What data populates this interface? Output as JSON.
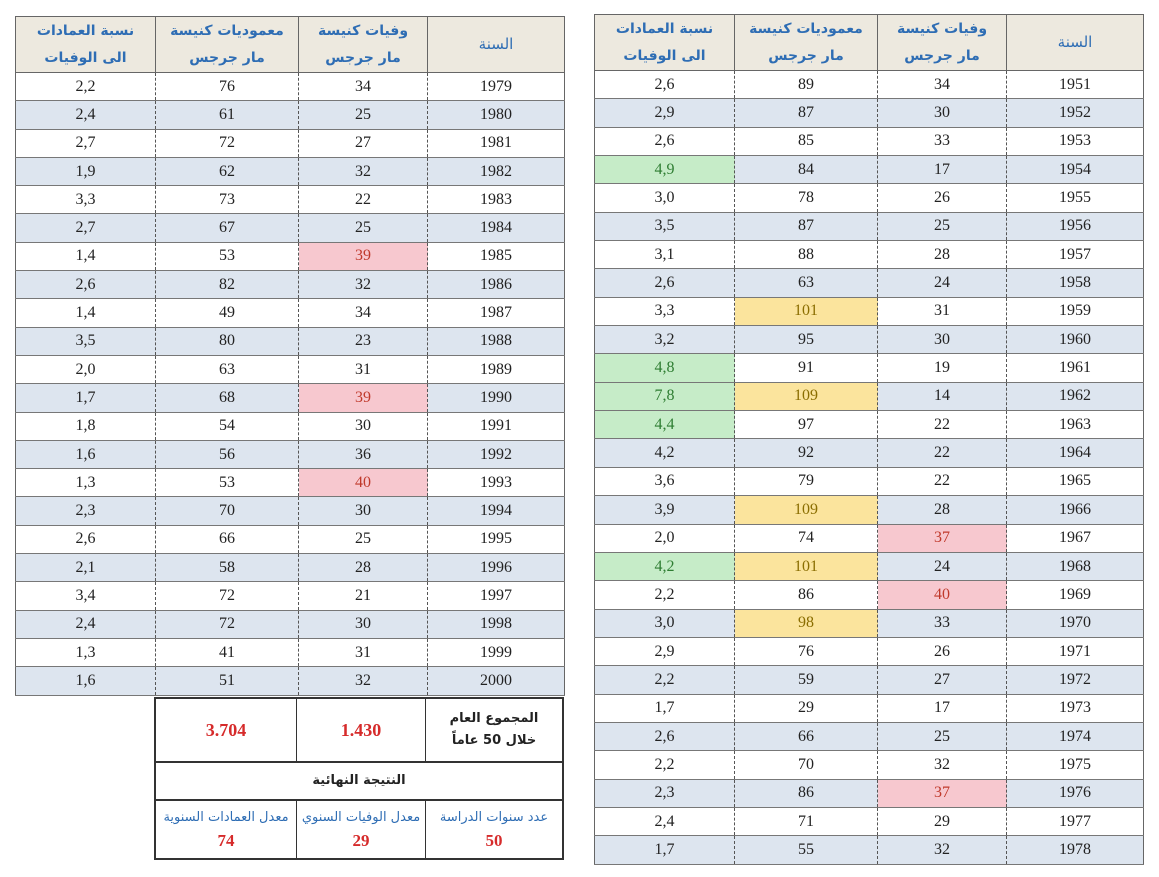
{
  "headers": {
    "year": "السنة",
    "deaths_line1": "وفيات كنيسة",
    "deaths_line2": "مار جرجس",
    "baptisms_line1": "معموديات كنيسة",
    "baptisms_line2": "مار جرجس",
    "ratio_line1": "نسبة العمادات",
    "ratio_line2": "الى الوفيات"
  },
  "colors": {
    "red": "#f7c8cf",
    "yellow": "#fbe49d",
    "green": "#c6ecc8",
    "stripe": "#dde5ef",
    "header_bg": "#ede9df",
    "header_text": "#2e6db4"
  },
  "right_table": [
    {
      "year": "1951",
      "deaths": "34",
      "baptisms": "89",
      "ratio": "2,6"
    },
    {
      "year": "1952",
      "deaths": "30",
      "baptisms": "87",
      "ratio": "2,9"
    },
    {
      "year": "1953",
      "deaths": "33",
      "baptisms": "85",
      "ratio": "2,6"
    },
    {
      "year": "1954",
      "deaths": "17",
      "baptisms": "84",
      "ratio": "4,9",
      "ratio_hl": "green"
    },
    {
      "year": "1955",
      "deaths": "26",
      "baptisms": "78",
      "ratio": "3,0"
    },
    {
      "year": "1956",
      "deaths": "25",
      "baptisms": "87",
      "ratio": "3,5"
    },
    {
      "year": "1957",
      "deaths": "28",
      "baptisms": "88",
      "ratio": "3,1"
    },
    {
      "year": "1958",
      "deaths": "24",
      "baptisms": "63",
      "ratio": "2,6"
    },
    {
      "year": "1959",
      "deaths": "31",
      "baptisms": "101",
      "ratio": "3,3",
      "baptisms_hl": "yellow"
    },
    {
      "year": "1960",
      "deaths": "30",
      "baptisms": "95",
      "ratio": "3,2"
    },
    {
      "year": "1961",
      "deaths": "19",
      "baptisms": "91",
      "ratio": "4,8",
      "ratio_hl": "green"
    },
    {
      "year": "1962",
      "deaths": "14",
      "baptisms": "109",
      "ratio": "7,8",
      "baptisms_hl": "yellow",
      "ratio_hl": "green"
    },
    {
      "year": "1963",
      "deaths": "22",
      "baptisms": "97",
      "ratio": "4,4",
      "ratio_hl": "green"
    },
    {
      "year": "1964",
      "deaths": "22",
      "baptisms": "92",
      "ratio": "4,2"
    },
    {
      "year": "1965",
      "deaths": "22",
      "baptisms": "79",
      "ratio": "3,6"
    },
    {
      "year": "1966",
      "deaths": "28",
      "baptisms": "109",
      "ratio": "3,9",
      "baptisms_hl": "yellow"
    },
    {
      "year": "1967",
      "deaths": "37",
      "baptisms": "74",
      "ratio": "2,0",
      "deaths_hl": "red"
    },
    {
      "year": "1968",
      "deaths": "24",
      "baptisms": "101",
      "ratio": "4,2",
      "baptisms_hl": "yellow",
      "ratio_hl": "green"
    },
    {
      "year": "1969",
      "deaths": "40",
      "baptisms": "86",
      "ratio": "2,2",
      "deaths_hl": "red"
    },
    {
      "year": "1970",
      "deaths": "33",
      "baptisms": "98",
      "ratio": "3,0",
      "baptisms_hl": "yellow"
    },
    {
      "year": "1971",
      "deaths": "26",
      "baptisms": "76",
      "ratio": "2,9"
    },
    {
      "year": "1972",
      "deaths": "27",
      "baptisms": "59",
      "ratio": "2,2"
    },
    {
      "year": "1973",
      "deaths": "17",
      "baptisms": "29",
      "ratio": "1,7"
    },
    {
      "year": "1974",
      "deaths": "25",
      "baptisms": "66",
      "ratio": "2,6"
    },
    {
      "year": "1975",
      "deaths": "32",
      "baptisms": "70",
      "ratio": "2,2"
    },
    {
      "year": "1976",
      "deaths": "37",
      "baptisms": "86",
      "ratio": "2,3",
      "deaths_hl": "red"
    },
    {
      "year": "1977",
      "deaths": "29",
      "baptisms": "71",
      "ratio": "2,4"
    },
    {
      "year": "1978",
      "deaths": "32",
      "baptisms": "55",
      "ratio": "1,7"
    }
  ],
  "left_table": [
    {
      "year": "1979",
      "deaths": "34",
      "baptisms": "76",
      "ratio": "2,2"
    },
    {
      "year": "1980",
      "deaths": "25",
      "baptisms": "61",
      "ratio": "2,4"
    },
    {
      "year": "1981",
      "deaths": "27",
      "baptisms": "72",
      "ratio": "2,7"
    },
    {
      "year": "1982",
      "deaths": "32",
      "baptisms": "62",
      "ratio": "1,9"
    },
    {
      "year": "1983",
      "deaths": "22",
      "baptisms": "73",
      "ratio": "3,3"
    },
    {
      "year": "1984",
      "deaths": "25",
      "baptisms": "67",
      "ratio": "2,7"
    },
    {
      "year": "1985",
      "deaths": "39",
      "baptisms": "53",
      "ratio": "1,4",
      "deaths_hl": "red"
    },
    {
      "year": "1986",
      "deaths": "32",
      "baptisms": "82",
      "ratio": "2,6"
    },
    {
      "year": "1987",
      "deaths": "34",
      "baptisms": "49",
      "ratio": "1,4"
    },
    {
      "year": "1988",
      "deaths": "23",
      "baptisms": "80",
      "ratio": "3,5"
    },
    {
      "year": "1989",
      "deaths": "31",
      "baptisms": "63",
      "ratio": "2,0"
    },
    {
      "year": "1990",
      "deaths": "39",
      "baptisms": "68",
      "ratio": "1,7",
      "deaths_hl": "red"
    },
    {
      "year": "1991",
      "deaths": "30",
      "baptisms": "54",
      "ratio": "1,8"
    },
    {
      "year": "1992",
      "deaths": "36",
      "baptisms": "56",
      "ratio": "1,6"
    },
    {
      "year": "1993",
      "deaths": "40",
      "baptisms": "53",
      "ratio": "1,3",
      "deaths_hl": "red"
    },
    {
      "year": "1994",
      "deaths": "30",
      "baptisms": "70",
      "ratio": "2,3"
    },
    {
      "year": "1995",
      "deaths": "25",
      "baptisms": "66",
      "ratio": "2,6"
    },
    {
      "year": "1996",
      "deaths": "28",
      "baptisms": "58",
      "ratio": "2,1"
    },
    {
      "year": "1997",
      "deaths": "21",
      "baptisms": "72",
      "ratio": "3,4"
    },
    {
      "year": "1998",
      "deaths": "30",
      "baptisms": "72",
      "ratio": "2,4"
    },
    {
      "year": "1999",
      "deaths": "31",
      "baptisms": "41",
      "ratio": "1,3"
    },
    {
      "year": "2000",
      "deaths": "32",
      "baptisms": "51",
      "ratio": "1,6"
    }
  ],
  "summary": {
    "total_label_line1": "المجموع العام",
    "total_label_line2": "خلال 50 عاماً",
    "total_deaths": "1.430",
    "total_baptisms": "3.704",
    "final_result": "النتيجة النهائية",
    "years_label": "عدد سنوات الدراسة",
    "years_value": "50",
    "avg_deaths_label": "معدل الوفيات السنوي",
    "avg_deaths_value": "29",
    "avg_baptisms_label": "معدل العمادات السنوية",
    "avg_baptisms_value": "74"
  }
}
